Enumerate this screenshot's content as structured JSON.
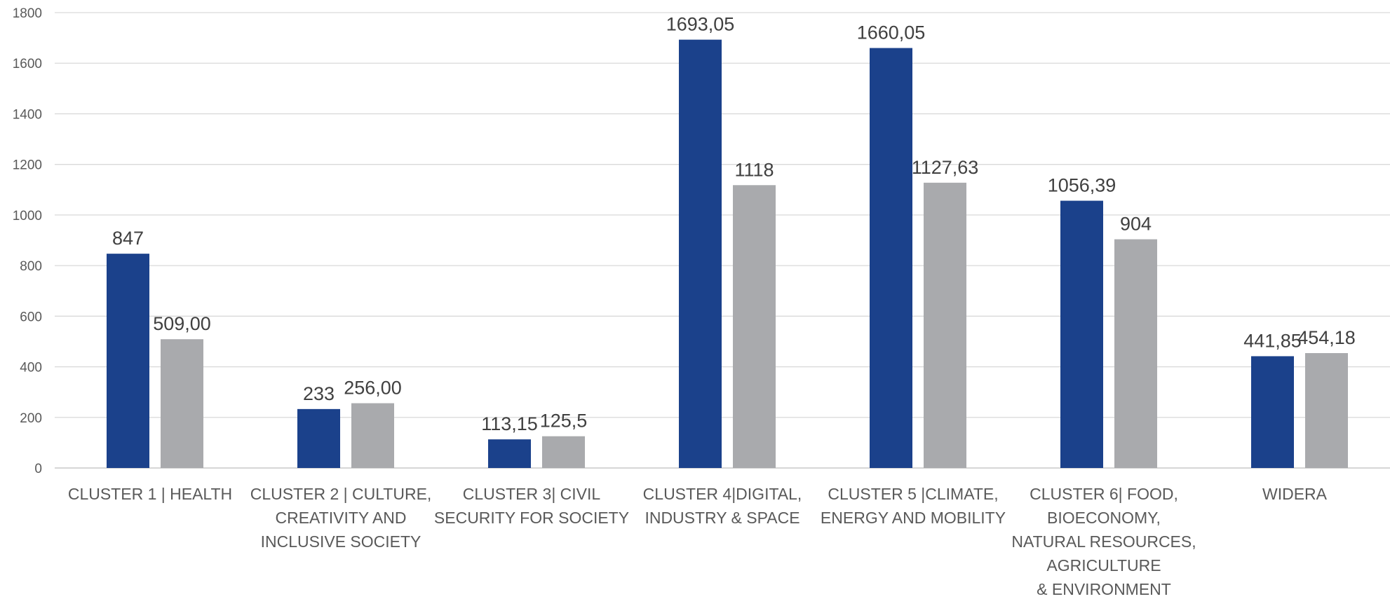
{
  "chart_data": {
    "type": "bar",
    "title": "",
    "xlabel": "",
    "ylabel": "",
    "ylim": [
      0,
      1800
    ],
    "yticks": [
      0,
      200,
      400,
      600,
      800,
      1000,
      1200,
      1400,
      1600,
      1800
    ],
    "grid": true,
    "legend": "none",
    "categories": [
      [
        "CLUSTER 1 | HEALTH"
      ],
      [
        "CLUSTER 2 | CULTURE,",
        "CREATIVITY AND",
        "INCLUSIVE SOCIETY"
      ],
      [
        "CLUSTER 3| CIVIL",
        "SECURITY FOR SOCIETY"
      ],
      [
        "CLUSTER 4|DIGITAL,",
        "INDUSTRY & SPACE"
      ],
      [
        "CLUSTER 5 |CLIMATE,",
        "ENERGY AND MOBILITY"
      ],
      [
        "CLUSTER 6| FOOD,",
        "BIOECONOMY,",
        "NATURAL RESOURCES,",
        "AGRICULTURE",
        "& ENVIRONMENT"
      ],
      [
        "WIDERA"
      ]
    ],
    "series": [
      {
        "color": "#1b418b",
        "values": [
          847,
          233,
          113.15,
          1693.05,
          1660.05,
          1056.39,
          441.85
        ],
        "labels": [
          "847",
          "233",
          "113,15",
          "1693,05",
          "1660,05",
          "1056,39",
          "441,85"
        ]
      },
      {
        "color": "#a9aaad",
        "values": [
          509,
          256,
          125.5,
          1118,
          1127.63,
          904,
          454.18
        ],
        "labels": [
          "509,00",
          "256,00",
          "125,5",
          "1118",
          "1127,63",
          "904",
          "454,18"
        ]
      }
    ]
  }
}
